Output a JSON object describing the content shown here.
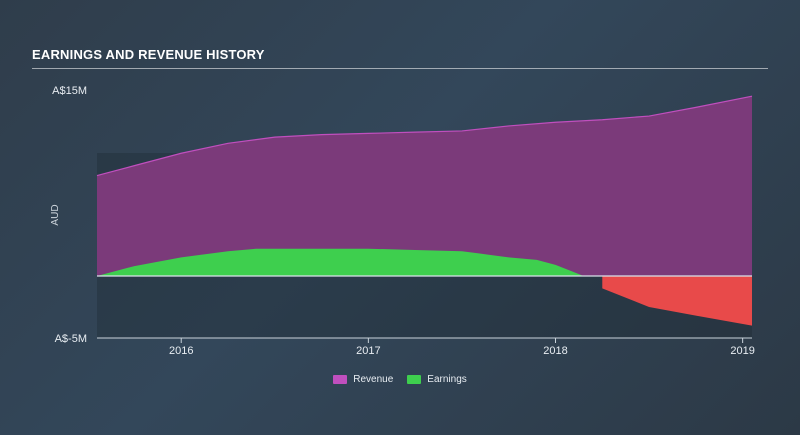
{
  "title": "EARNINGS AND REVENUE HISTORY",
  "chart_data": {
    "type": "area",
    "ylabel": "AUD",
    "ylim": [
      -5,
      15
    ],
    "y_tick_labels": [
      "A$15M",
      "A$-5M"
    ],
    "y_ticks": [
      15,
      -5
    ],
    "xlim": [
      2015.55,
      2019.05
    ],
    "x_ticks": [
      2016,
      2017,
      2018,
      2019
    ],
    "x_tick_labels": [
      "2016",
      "2017",
      "2018",
      "2019"
    ],
    "grid": false,
    "legend_position": "bottom-center",
    "series": [
      {
        "name": "Revenue",
        "color": "#7b3a7a",
        "line_color": "#c04fbe",
        "x": [
          2015.55,
          2015.75,
          2016.0,
          2016.25,
          2016.5,
          2016.75,
          2017.0,
          2017.25,
          2017.5,
          2017.75,
          2018.0,
          2018.25,
          2018.5,
          2018.75,
          2019.05
        ],
        "values": [
          8.1,
          8.9,
          9.9,
          10.7,
          11.2,
          11.4,
          11.5,
          11.6,
          11.7,
          12.1,
          12.4,
          12.6,
          12.9,
          13.6,
          14.5
        ]
      },
      {
        "name": "Earnings",
        "color": "#3ecf4e",
        "negative_color": "#e84a4a",
        "x": [
          2015.55,
          2015.75,
          2016.0,
          2016.25,
          2016.4,
          2016.75,
          2017.0,
          2017.25,
          2017.5,
          2017.6,
          2017.75,
          2017.9,
          2018.0,
          2018.1,
          2018.15,
          2018.25,
          2018.5,
          2018.75,
          2019.05
        ],
        "values": [
          0.0,
          0.8,
          1.5,
          2.0,
          2.2,
          2.2,
          2.2,
          2.1,
          2.0,
          1.8,
          1.5,
          1.3,
          0.9,
          0.3,
          0.0,
          -1.0,
          -2.5,
          -3.2,
          -4.0
        ]
      }
    ]
  }
}
